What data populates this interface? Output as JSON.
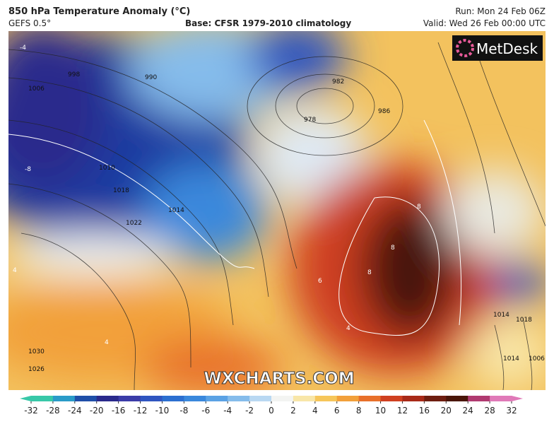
{
  "header": {
    "title": "850 hPa Temperature Anomaly (°C)",
    "model": "GEFS 0.5°",
    "base": "Base: CFSR 1979-2010 climatology",
    "run": "Run: Mon 24 Feb 06Z",
    "valid": "Valid: Wed 26 Feb 00:00 UTC"
  },
  "logo": "MetDesk",
  "watermark": "WXCHARTS.COM",
  "colorbar": {
    "ticks": [
      -32,
      -28,
      -24,
      -20,
      -16,
      -12,
      -10,
      -8,
      -6,
      -4,
      -2,
      0,
      2,
      4,
      6,
      8,
      10,
      12,
      16,
      20,
      24,
      28,
      32
    ],
    "colors": [
      "#38c8a8",
      "#2a9bc8",
      "#1f4fa8",
      "#2a2a8c",
      "#3b3ca8",
      "#2f55c0",
      "#2c6fd0",
      "#3a88dc",
      "#5ba2e4",
      "#85bceb",
      "#b9d8f2",
      "#f3f4f2",
      "#f8e6a8",
      "#f6c65a",
      "#f2a03a",
      "#e8702a",
      "#cf4020",
      "#a82a18",
      "#6e1e10",
      "#4a1608",
      "#b03a70",
      "#e07ab8"
    ]
  },
  "isobar_labels": [
    "998",
    "990",
    "1006",
    "1010",
    "1018",
    "1014",
    "1022",
    "1030",
    "1026",
    "982",
    "978",
    "986",
    "1014",
    "1018",
    "1014",
    "1006"
  ],
  "anomaly_labels": [
    "-4",
    "-8",
    "4",
    "8",
    "8",
    "6",
    "8",
    "4",
    "4"
  ]
}
